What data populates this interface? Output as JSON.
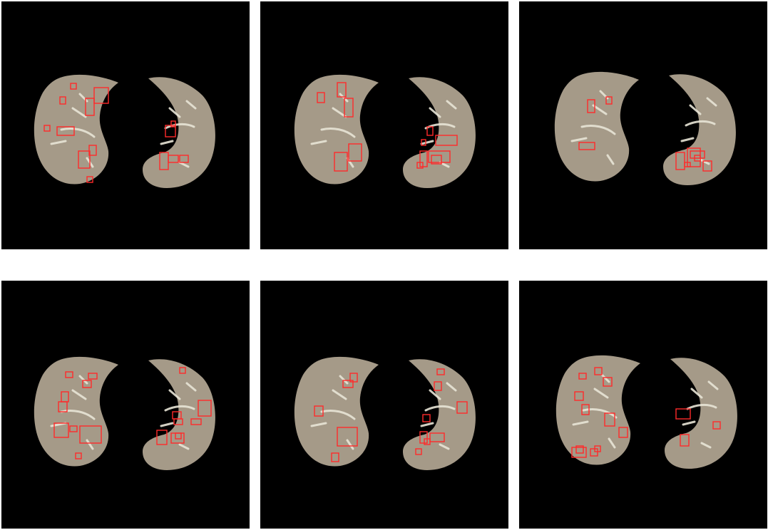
{
  "colors": {
    "background": "#000000",
    "lung_tissue": "#a59a88",
    "vessel": "#e8e4d6",
    "box": "#ff2a2a",
    "page": "#ffffff"
  },
  "panels": [
    {
      "boxes_count": 14
    },
    {
      "boxes_count": 12
    },
    {
      "boxes_count": 9
    },
    {
      "boxes_count": 17
    },
    {
      "boxes_count": 13
    },
    {
      "boxes_count": 14
    }
  ]
}
